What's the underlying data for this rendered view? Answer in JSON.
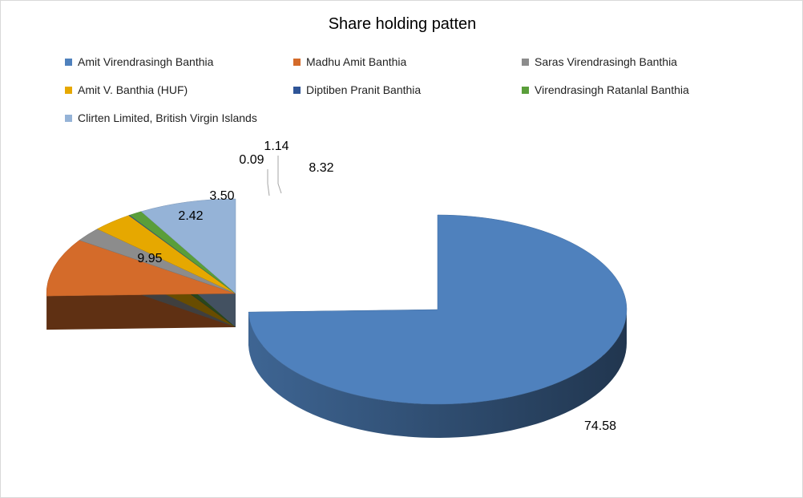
{
  "chart_data": {
    "type": "pie",
    "variant": "3d-exploded",
    "title": "Share holding patten",
    "legend_position": "top",
    "slices": [
      {
        "name": "Amit Virendrasingh Banthia",
        "value": 74.58,
        "label": "74.58",
        "color": "#4f81bd"
      },
      {
        "name": "Madhu Amit Banthia",
        "value": 9.95,
        "label": "9.95",
        "color": "#d46b2a"
      },
      {
        "name": "Saras Virendrasingh Banthia",
        "value": 2.42,
        "label": "2.42",
        "color": "#8c8c8c"
      },
      {
        "name": "Amit V. Banthia (HUF)",
        "value": 3.5,
        "label": "3.50",
        "color": "#e6a800"
      },
      {
        "name": "Diptiben Pranit Banthia",
        "value": 0.09,
        "label": "0.09",
        "color": "#2f5597"
      },
      {
        "name": "Virendrasingh Ratanlal Banthia",
        "value": 1.14,
        "label": "1.14",
        "color": "#5a9e3a"
      },
      {
        "name": "Clirten Limited, British Virgin Islands",
        "value": 8.32,
        "label": "8.32",
        "color": "#95b3d7"
      }
    ]
  }
}
